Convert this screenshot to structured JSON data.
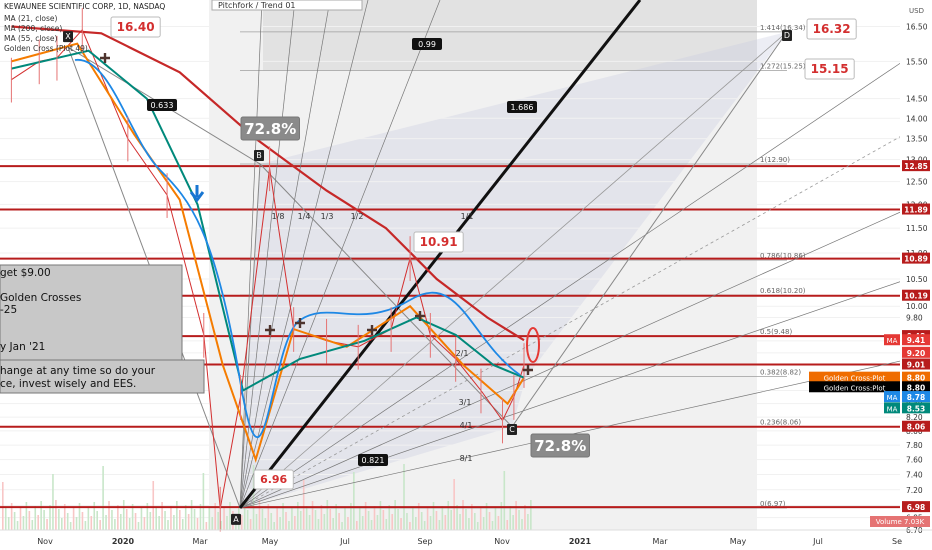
{
  "header": {
    "symbol": "KEWAUNEE SCIENTIFIC CORP, 1D, NASDAQ",
    "ma_labels": [
      "MA (21, close)",
      "MA (200, close)",
      "MA (55, close)",
      "Golden Cross (Plot 49)"
    ],
    "title_fragment": "Pitchfork / Trend 01",
    "currency": "USD"
  },
  "note_box": {
    "lines": [
      "get $9.00",
      "Golden Crosses",
      "-25",
      "y Jan '21",
      "hange at any time so do your",
      "ce, invest wisely and EES."
    ]
  },
  "callouts": {
    "high": "16.40",
    "low": "6.96",
    "mid_high": "10.91",
    "target_d": "16.32",
    "target_2": "15.15",
    "pct_top": "72.8%",
    "pct_bottom": "72.8%"
  },
  "pivots": [
    "X",
    "A",
    "B",
    "C",
    "D"
  ],
  "ratios": [
    {
      "label": "0.633"
    },
    {
      "label": "0.99"
    },
    {
      "label": "1.686"
    },
    {
      "label": "0.821"
    }
  ],
  "fan_labels": [
    "1/8",
    "1/4",
    "1/3",
    "1/2",
    "1/1",
    "3/1",
    "4/1",
    "8/1",
    "2/1"
  ],
  "fib_levels": [
    {
      "label": "1.414(16.34)",
      "value": 16.34
    },
    {
      "label": "1.272(15.25)",
      "value": 15.25
    },
    {
      "label": "1(12.90)",
      "value": 12.9
    },
    {
      "label": "0.786(10.86)",
      "value": 10.86
    },
    {
      "label": "0.618(10.20)",
      "value": 10.2
    },
    {
      "label": "0.5(9.48)",
      "value": 9.48
    },
    {
      "label": "0.382(8.82)",
      "value": 8.82
    },
    {
      "label": "0.236(8.06)",
      "value": 8.06
    },
    {
      "label": "0(6.97)",
      "value": 6.97
    }
  ],
  "horizontal_levels": [
    12.85,
    11.89,
    10.89,
    10.19,
    9.48,
    9.01,
    8.06,
    6.98
  ],
  "price_badges": [
    {
      "label": "12.85",
      "value": 12.85,
      "color": "#b71c1c"
    },
    {
      "label": "11.89",
      "value": 11.89,
      "color": "#b71c1c"
    },
    {
      "label": "10.89",
      "value": 10.89,
      "color": "#b71c1c"
    },
    {
      "label": "10.19",
      "value": 10.19,
      "color": "#b71c1c"
    },
    {
      "label": "9.48",
      "value": 9.48,
      "color": "#b71c1c"
    },
    {
      "label": "9.41",
      "value": 9.41,
      "color": "#e53935",
      "tag": "MA"
    },
    {
      "label": "9.20",
      "value": 9.2,
      "color": "#e53935"
    },
    {
      "label": "9.01",
      "value": 9.01,
      "color": "#b71c1c"
    },
    {
      "label": "8.80",
      "value": 8.8,
      "color": "#ef6c00",
      "tag": "Golden Cross:Plot"
    },
    {
      "label": "8.80",
      "value": 8.65,
      "color": "#000000",
      "tag": "Golden Cross:Plot"
    },
    {
      "label": "8.78",
      "value": 8.5,
      "color": "#1e88e5",
      "tag": "MA"
    },
    {
      "label": "8.53",
      "value": 8.33,
      "color": "#00897b",
      "tag": "MA"
    },
    {
      "label": "8.06",
      "value": 8.06,
      "color": "#b71c1c"
    },
    {
      "label": "6.98",
      "value": 6.98,
      "color": "#b71c1c"
    }
  ],
  "volume_badge": {
    "label": "Volume",
    "value": "7.03K"
  },
  "chart_data": {
    "type": "line",
    "title": "KEWAUNEE SCIENTIFIC CORP, 1D, NASDAQ",
    "y_scale": "log",
    "y_ticks": [
      16.5,
      15.5,
      14.5,
      14.0,
      13.5,
      13.0,
      12.5,
      12.0,
      11.5,
      11.0,
      10.5,
      10.0,
      9.8,
      9.4,
      9.2,
      9.0,
      8.6,
      8.4,
      8.2,
      8.0,
      7.8,
      7.6,
      7.4,
      7.2,
      7.0,
      6.85,
      6.7
    ],
    "ylim": [
      6.7,
      17.3
    ],
    "x_ticks": [
      "Nov",
      "2020",
      "Mar",
      "May",
      "Jul",
      "Sep",
      "Nov",
      "2021",
      "Mar",
      "May",
      "Jul",
      "Se"
    ],
    "series": [
      {
        "name": "Price",
        "x": [
          "2019-10-10",
          "2019-11-01",
          "2019-11-15",
          "2019-12-05",
          "2020-01-10",
          "2020-02-10",
          "2020-03-10",
          "2020-03-23",
          "2020-04-08",
          "2020-05-01",
          "2020-05-20",
          "2020-06-15",
          "2020-07-10",
          "2020-08-05",
          "2020-08-20",
          "2020-09-05",
          "2020-09-25",
          "2020-10-15",
          "2020-11-01",
          "2020-11-10",
          "2020-11-18"
        ],
        "values": [
          15.0,
          15.5,
          15.6,
          16.4,
          13.5,
          12.2,
          9.5,
          6.96,
          8.5,
          12.8,
          9.6,
          9.4,
          9.3,
          9.6,
          10.9,
          9.5,
          9.1,
          8.6,
          8.15,
          8.5,
          9.0
        ]
      },
      {
        "name": "MA (21, close)",
        "x": [
          "2019-10-10",
          "2019-12-01",
          "2020-01-15",
          "2020-02-20",
          "2020-03-25",
          "2020-04-20",
          "2020-05-20",
          "2020-07-01",
          "2020-08-20",
          "2020-10-01",
          "2020-11-05",
          "2020-11-18"
        ],
        "values": [
          15.5,
          16.0,
          13.6,
          12.1,
          9.0,
          7.6,
          9.6,
          9.3,
          10.0,
          9.0,
          8.4,
          8.8
        ]
      },
      {
        "name": "MA (55, close)",
        "x": [
          "2019-10-10",
          "2019-12-10",
          "2020-01-25",
          "2020-03-05",
          "2020-04-10",
          "2020-05-25",
          "2020-07-15",
          "2020-08-25",
          "2020-09-25",
          "2020-10-25",
          "2020-11-18"
        ],
        "values": [
          15.3,
          15.8,
          14.5,
          12.0,
          8.6,
          9.1,
          9.4,
          9.8,
          9.5,
          9.0,
          8.8
        ]
      },
      {
        "name": "MA (200, close)",
        "x": [
          "2019-10-10",
          "2019-12-20",
          "2020-02-20",
          "2020-04-20",
          "2020-06-15",
          "2020-08-01",
          "2020-09-10",
          "2020-10-20",
          "2020-11-18"
        ],
        "values": [
          16.5,
          16.3,
          15.2,
          13.5,
          12.3,
          11.5,
          10.5,
          9.8,
          9.41
        ]
      }
    ]
  }
}
